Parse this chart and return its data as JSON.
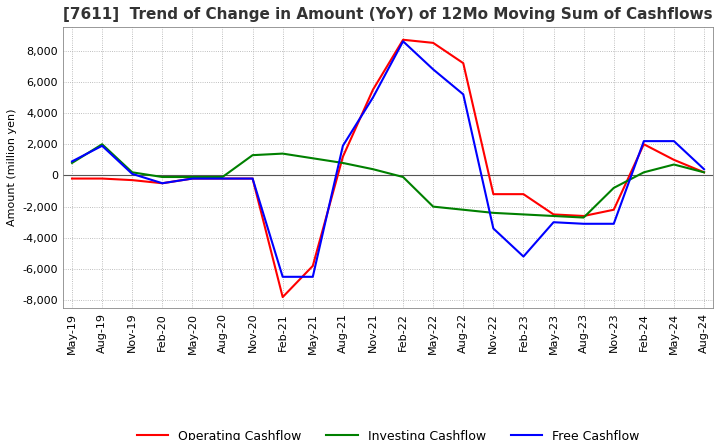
{
  "title": "[7611]  Trend of Change in Amount (YoY) of 12Mo Moving Sum of Cashflows",
  "ylabel": "Amount (million yen)",
  "ylim": [
    -8500,
    9500
  ],
  "yticks": [
    -8000,
    -6000,
    -4000,
    -2000,
    0,
    2000,
    4000,
    6000,
    8000
  ],
  "x_labels": [
    "May-19",
    "Aug-19",
    "Nov-19",
    "Feb-20",
    "May-20",
    "Aug-20",
    "Nov-20",
    "Feb-21",
    "May-21",
    "Aug-21",
    "Nov-21",
    "Feb-22",
    "May-22",
    "Aug-22",
    "Nov-22",
    "Feb-23",
    "May-23",
    "Aug-23",
    "Nov-23",
    "Feb-24",
    "May-24",
    "Aug-24"
  ],
  "operating_cashflow": [
    -200,
    -200,
    -300,
    -500,
    -200,
    -200,
    -200,
    -7800,
    -5800,
    1200,
    5500,
    8700,
    8500,
    7200,
    -1200,
    -1200,
    -2500,
    -2600,
    -2200,
    2000,
    1000,
    200
  ],
  "investing_cashflow": [
    800,
    2000,
    200,
    -100,
    -100,
    -100,
    1300,
    1400,
    1100,
    800,
    400,
    -100,
    -2000,
    -2200,
    -2400,
    -2500,
    -2600,
    -2700,
    -800,
    200,
    700,
    200
  ],
  "free_cashflow": [
    900,
    1900,
    100,
    -500,
    -200,
    -200,
    -200,
    -6500,
    -6500,
    1900,
    5000,
    8600,
    6800,
    5200,
    -3400,
    -5200,
    -3000,
    -3100,
    -3100,
    2200,
    2200,
    400
  ],
  "operating_color": "#ff0000",
  "investing_color": "#008000",
  "free_color": "#0000ff",
  "background_color": "#ffffff",
  "grid_color": "#aaaaaa",
  "title_fontsize": 11,
  "legend_fontsize": 9,
  "axis_fontsize": 8
}
